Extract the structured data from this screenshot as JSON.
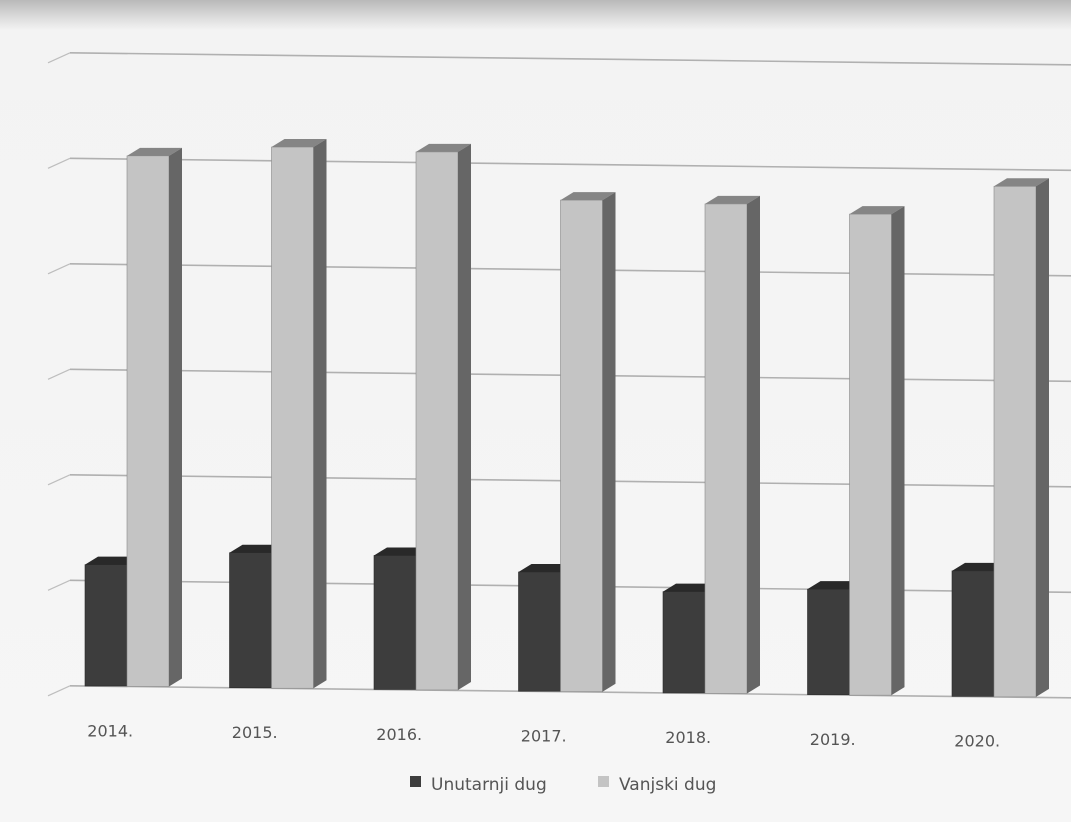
{
  "chart_data": {
    "type": "bar",
    "title": "",
    "xlabel": "",
    "ylabel": "",
    "categories": [
      "2014.",
      "2015.",
      "2016.",
      "2017.",
      "2018.",
      "2019.",
      "2020."
    ],
    "series": [
      {
        "name": "Unutarnji dug",
        "values": [
          11.5,
          12.8,
          12.7,
          11.3,
          9.6,
          10.0,
          11.9
        ]
      },
      {
        "name": "Vanjski dug",
        "values": [
          50.3,
          51.3,
          51.0,
          46.6,
          46.4,
          45.6,
          48.4
        ]
      }
    ],
    "ylim": [
      0,
      60
    ],
    "y_tick_labels_visible": false,
    "grid": true,
    "legend_position": "bottom",
    "style": "3d-clustered-column",
    "colors": {
      "Unutarnji dug": "#3d3d3d",
      "Vanjski dug": "#c4c4c4",
      "grid": "#9a9a9a"
    }
  }
}
